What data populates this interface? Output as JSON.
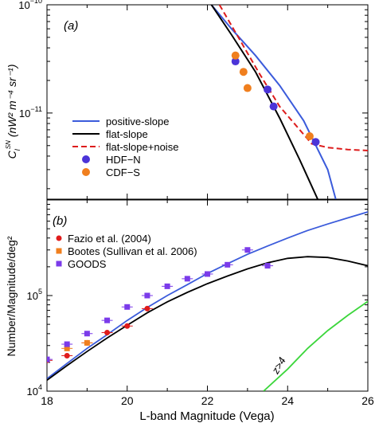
{
  "chart_data": [
    {
      "type": "line",
      "panel_label": "(a)",
      "ylabel": "C",
      "ylabel_sub": "l",
      "ylabel_sup": "SN",
      "ylabel_units": "(nW² m⁻⁴ sr⁻¹)",
      "yscale": "log",
      "ylim": [
        1.6e-12,
        1e-10
      ],
      "xlim": [
        18,
        26
      ],
      "y_ticks": [
        {
          "value": 1e-10,
          "base": "10",
          "exp": "−10"
        },
        {
          "value": 1e-11,
          "base": "10",
          "exp": "−11"
        }
      ],
      "legend": {
        "position": "center-left"
      },
      "series": [
        {
          "name": "positive-slope",
          "kind": "line",
          "color": "#3b5bdb",
          "dash": "",
          "x": [
            22.1,
            22.6,
            23.2,
            23.8,
            24.4,
            25.0,
            25.2
          ],
          "y": [
            1e-10,
            6e-11,
            3.4e-11,
            1.8e-11,
            8.5e-12,
            3e-12,
            1.6e-12
          ]
        },
        {
          "name": "flat-slope",
          "kind": "line",
          "color": "#000000",
          "dash": "",
          "x": [
            22.1,
            22.6,
            23.2,
            23.8,
            24.3,
            24.75
          ],
          "y": [
            1e-10,
            5.3e-11,
            2.4e-11,
            9e-12,
            3.7e-12,
            1.6e-12
          ]
        },
        {
          "name": "flat-slope+noise",
          "kind": "line",
          "color": "#dd1c1c",
          "dash": "7,4",
          "x": [
            22.3,
            22.8,
            23.3,
            23.8,
            24.3,
            24.6,
            25.0,
            25.5,
            26.0
          ],
          "y": [
            1e-10,
            4.8e-11,
            2.3e-11,
            1.15e-11,
            7e-12,
            5.2e-12,
            4.8e-12,
            4.6e-12,
            4.5e-12
          ]
        },
        {
          "name": "HDF−N",
          "kind": "points",
          "color": "#4b34d8",
          "x": [
            22.7,
            23.5,
            23.65,
            24.7
          ],
          "y": [
            3e-11,
            1.65e-11,
            1.15e-11,
            5.4e-12
          ]
        },
        {
          "name": "CDF−S",
          "kind": "points",
          "color": "#f07f1e",
          "x": [
            22.7,
            22.9,
            23.0,
            24.55
          ],
          "y": [
            3.4e-11,
            2.4e-11,
            1.7e-11,
            6.1e-12
          ]
        }
      ]
    },
    {
      "type": "line",
      "panel_label": "(b)",
      "xlabel": "L-band Magnitude (Vega)",
      "ylabel": "Number/Magnitude/deg²",
      "yscale": "log",
      "ylim": [
        10000.0,
        1000000.0
      ],
      "xlim": [
        18,
        26
      ],
      "x_ticks": [
        "18",
        "20",
        "22",
        "24",
        "26"
      ],
      "y_ticks": [
        {
          "value": 10000.0,
          "base": "10",
          "exp": "4"
        },
        {
          "value": 100000.0,
          "base": "10",
          "exp": "5"
        }
      ],
      "legend": {
        "position": "top-left"
      },
      "annotation": "z>4",
      "series": [
        {
          "name": "",
          "kind": "line",
          "color": "#3b5bdb",
          "x": [
            18.0,
            18.5,
            19.0,
            19.5,
            20.0,
            20.5,
            21.0,
            21.5,
            22.0,
            22.5,
            23.0,
            23.5,
            24.0,
            24.5,
            25.0,
            25.5,
            26.0
          ],
          "y": [
            13500,
            19500,
            28000,
            39000,
            55000,
            75000,
            100000,
            130000,
            170000,
            215000,
            270000,
            330000,
            400000,
            480000,
            560000,
            650000,
            750000
          ]
        },
        {
          "name": "",
          "kind": "line",
          "color": "#000000",
          "x": [
            18.0,
            18.5,
            19.0,
            19.5,
            20.0,
            20.5,
            21.0,
            21.5,
            22.0,
            22.5,
            23.0,
            23.5,
            24.0,
            24.5,
            25.0,
            25.5,
            26.0
          ],
          "y": [
            13000,
            18500,
            26000,
            36000,
            49000,
            66000,
            86000,
            108000,
            133000,
            160000,
            190000,
            220000,
            245000,
            255000,
            250000,
            230000,
            205000
          ]
        },
        {
          "name": "",
          "kind": "line",
          "color": "#3bd63b",
          "x": [
            23.4,
            24.0,
            24.5,
            25.0,
            25.5,
            26.0
          ],
          "y": [
            10000,
            17000,
            28000,
            43000,
            62000,
            87000
          ]
        },
        {
          "name": "Fazio et al. (2004)",
          "kind": "points",
          "marker": "circle",
          "color": "#e01c1c",
          "x": [
            18.0,
            18.5,
            19.0,
            19.5,
            20.0,
            20.5
          ],
          "y": [
            21000,
            23500,
            32000,
            41000,
            48000,
            73000
          ]
        },
        {
          "name": "Bootes (Sullivan et al. 2006)",
          "kind": "points",
          "marker": "square",
          "color": "#f07f1e",
          "x": [
            18.5,
            19.0
          ],
          "y": [
            28000,
            32000
          ]
        },
        {
          "name": "GOODS",
          "kind": "points",
          "marker": "square",
          "color": "#7b3bea",
          "x": [
            18.0,
            18.5,
            19.0,
            19.5,
            20.0,
            20.5,
            21.0,
            21.5,
            22.0,
            22.5,
            23.0,
            23.5
          ],
          "y": [
            21500,
            31000,
            40000,
            55000,
            76000,
            100000,
            125000,
            150000,
            168000,
            210000,
            300000,
            205000
          ]
        }
      ]
    }
  ]
}
